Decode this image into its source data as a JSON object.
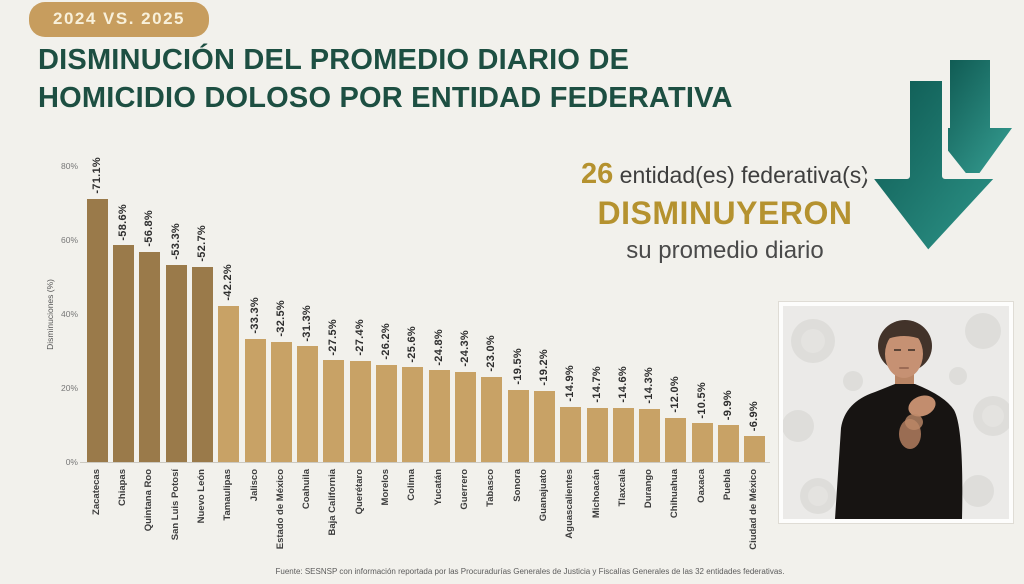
{
  "badge": {
    "label": "2024 VS. 2025"
  },
  "title": {
    "line1": "DISMINUCIÓN DEL PROMEDIO DIARIO DE",
    "line2": "HOMICIDIO DOLOSO POR ENTIDAD FEDERATIVA"
  },
  "callout": {
    "count": "26",
    "after_count": " entidad(es) federativa(s)",
    "emphasis": "DISMINUYERON",
    "subtitle": "su promedio diario"
  },
  "chart_data": {
    "type": "bar",
    "ylabel": "Disminuciones (%)",
    "yticks": [
      "0%",
      "20%",
      "40%",
      "60%",
      "80%"
    ],
    "ylim": [
      0,
      80
    ],
    "grid": false,
    "highlight_count": 5,
    "categories": [
      "Zacatecas",
      "Chiapas",
      "Quintana Roo",
      "San Luis Potosí",
      "Nuevo León",
      "Tamaulipas",
      "Jalisco",
      "Estado de México",
      "Coahuila",
      "Baja California",
      "Querétaro",
      "Morelos",
      "Colima",
      "Yucatán",
      "Guerrero",
      "Tabasco",
      "Sonora",
      "Guanajuato",
      "Aguascalientes",
      "Michoacán",
      "Tlaxcala",
      "Durango",
      "Chihuahua",
      "Oaxaca",
      "Puebla",
      "Ciudad de México"
    ],
    "values": [
      -71.1,
      -58.6,
      -56.8,
      -53.3,
      -52.7,
      -42.2,
      -33.3,
      -32.5,
      -31.3,
      -27.5,
      -27.4,
      -26.2,
      -25.6,
      -24.8,
      -24.3,
      -23.0,
      -19.5,
      -19.2,
      -14.9,
      -14.7,
      -14.6,
      -14.3,
      -12.0,
      -10.5,
      -9.9,
      -6.9
    ],
    "labels": [
      "-71.1%",
      "-58.6%",
      "-56.8%",
      "-53.3%",
      "-52.7%",
      "-42.2%",
      "-33.3%",
      "-32.5%",
      "-31.3%",
      "-27.5%",
      "-27.4%",
      "-26.2%",
      "-25.6%",
      "-24.8%",
      "-24.3%",
      "-23.0%",
      "-19.5%",
      "-19.2%",
      "-14.9%",
      "-14.7%",
      "-14.6%",
      "-14.3%",
      "-12.0%",
      "-10.5%",
      "-9.9%",
      "-6.9%"
    ]
  },
  "colors": {
    "badge_gold": "#c79d5e",
    "title_green": "#1d4f42",
    "accent_gold": "#b5922f",
    "bar_dark": "#9a7a4a",
    "bar_light": "#c8a266",
    "arrow_teal_dark": "#0c564f",
    "arrow_teal_light": "#2f978b"
  },
  "footer": {
    "source": "Fuente: SESNSP con información reportada por las Procuradurías Generales de Justicia y Fiscalías Generales de las 32 entidades federativas."
  }
}
